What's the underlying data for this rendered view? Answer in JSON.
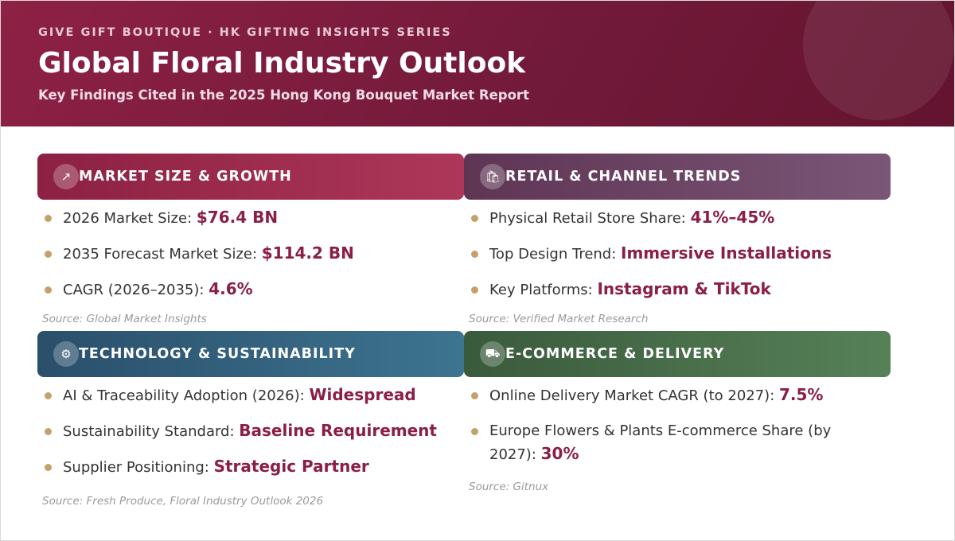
{
  "header": {
    "eyebrow": "GIVE GIFT BOUTIQUE  ·  HK GIFTING INSIGHTS SERIES",
    "title": "Global Floral Industry Outlook",
    "subtitle": "Key Findings Cited in the 2025 Hong Kong Bouquet Market Report"
  },
  "sections": [
    {
      "title": "MARKET SIZE & GROWTH",
      "icon": "chart-growth-icon",
      "icon_glyph": "↗",
      "items": [
        {
          "label": "2026 Market Size: ",
          "value": "$76.4 BN"
        },
        {
          "label": "2035 Forecast Market Size: ",
          "value": "$114.2 BN"
        },
        {
          "label": "CAGR (2026–2035): ",
          "value": "4.6%"
        }
      ],
      "source": "Source: Global Market Insights"
    },
    {
      "title": "RETAIL & CHANNEL TRENDS",
      "icon": "shopping-bags-icon",
      "icon_glyph": "🛍",
      "items": [
        {
          "label": "Physical Retail Store Share: ",
          "value": "41%–45%"
        },
        {
          "label": "Top Design Trend: ",
          "value": "Immersive Installations"
        },
        {
          "label": "Key Platforms: ",
          "value": "Instagram & TikTok"
        }
      ],
      "source": "Source: Verified Market Research"
    },
    {
      "title": "TECHNOLOGY & SUSTAINABILITY",
      "icon": "gear-icon",
      "icon_glyph": "⚙",
      "items": [
        {
          "label": "AI & Traceability Adoption (2026): ",
          "value": "Widespread"
        },
        {
          "label": "Sustainability Standard: ",
          "value": "Baseline Requirement"
        },
        {
          "label": "Supplier Positioning: ",
          "value": "Strategic Partner"
        }
      ],
      "source": "Source: Fresh Produce, Floral Industry Outlook 2026"
    },
    {
      "title": "E-COMMERCE & DELIVERY",
      "icon": "delivery-truck-icon",
      "icon_glyph": "⛟",
      "items": [
        {
          "label": "Online Delivery Market CAGR (to 2027): ",
          "value": "7.5%"
        },
        {
          "label": "Europe Flowers & Plants E-commerce Share (by 2027): ",
          "value": "30%"
        }
      ],
      "source": "Source: Gitnux"
    }
  ],
  "colors": {
    "header_bg": "#7a1c3d",
    "accent_value": "#8a1e46",
    "bullet": "#c4a16a",
    "market_header": "#9a2a4d",
    "retail_header": "#6d4565",
    "tech_header": "#33627e",
    "ecom_header": "#486d4a"
  }
}
